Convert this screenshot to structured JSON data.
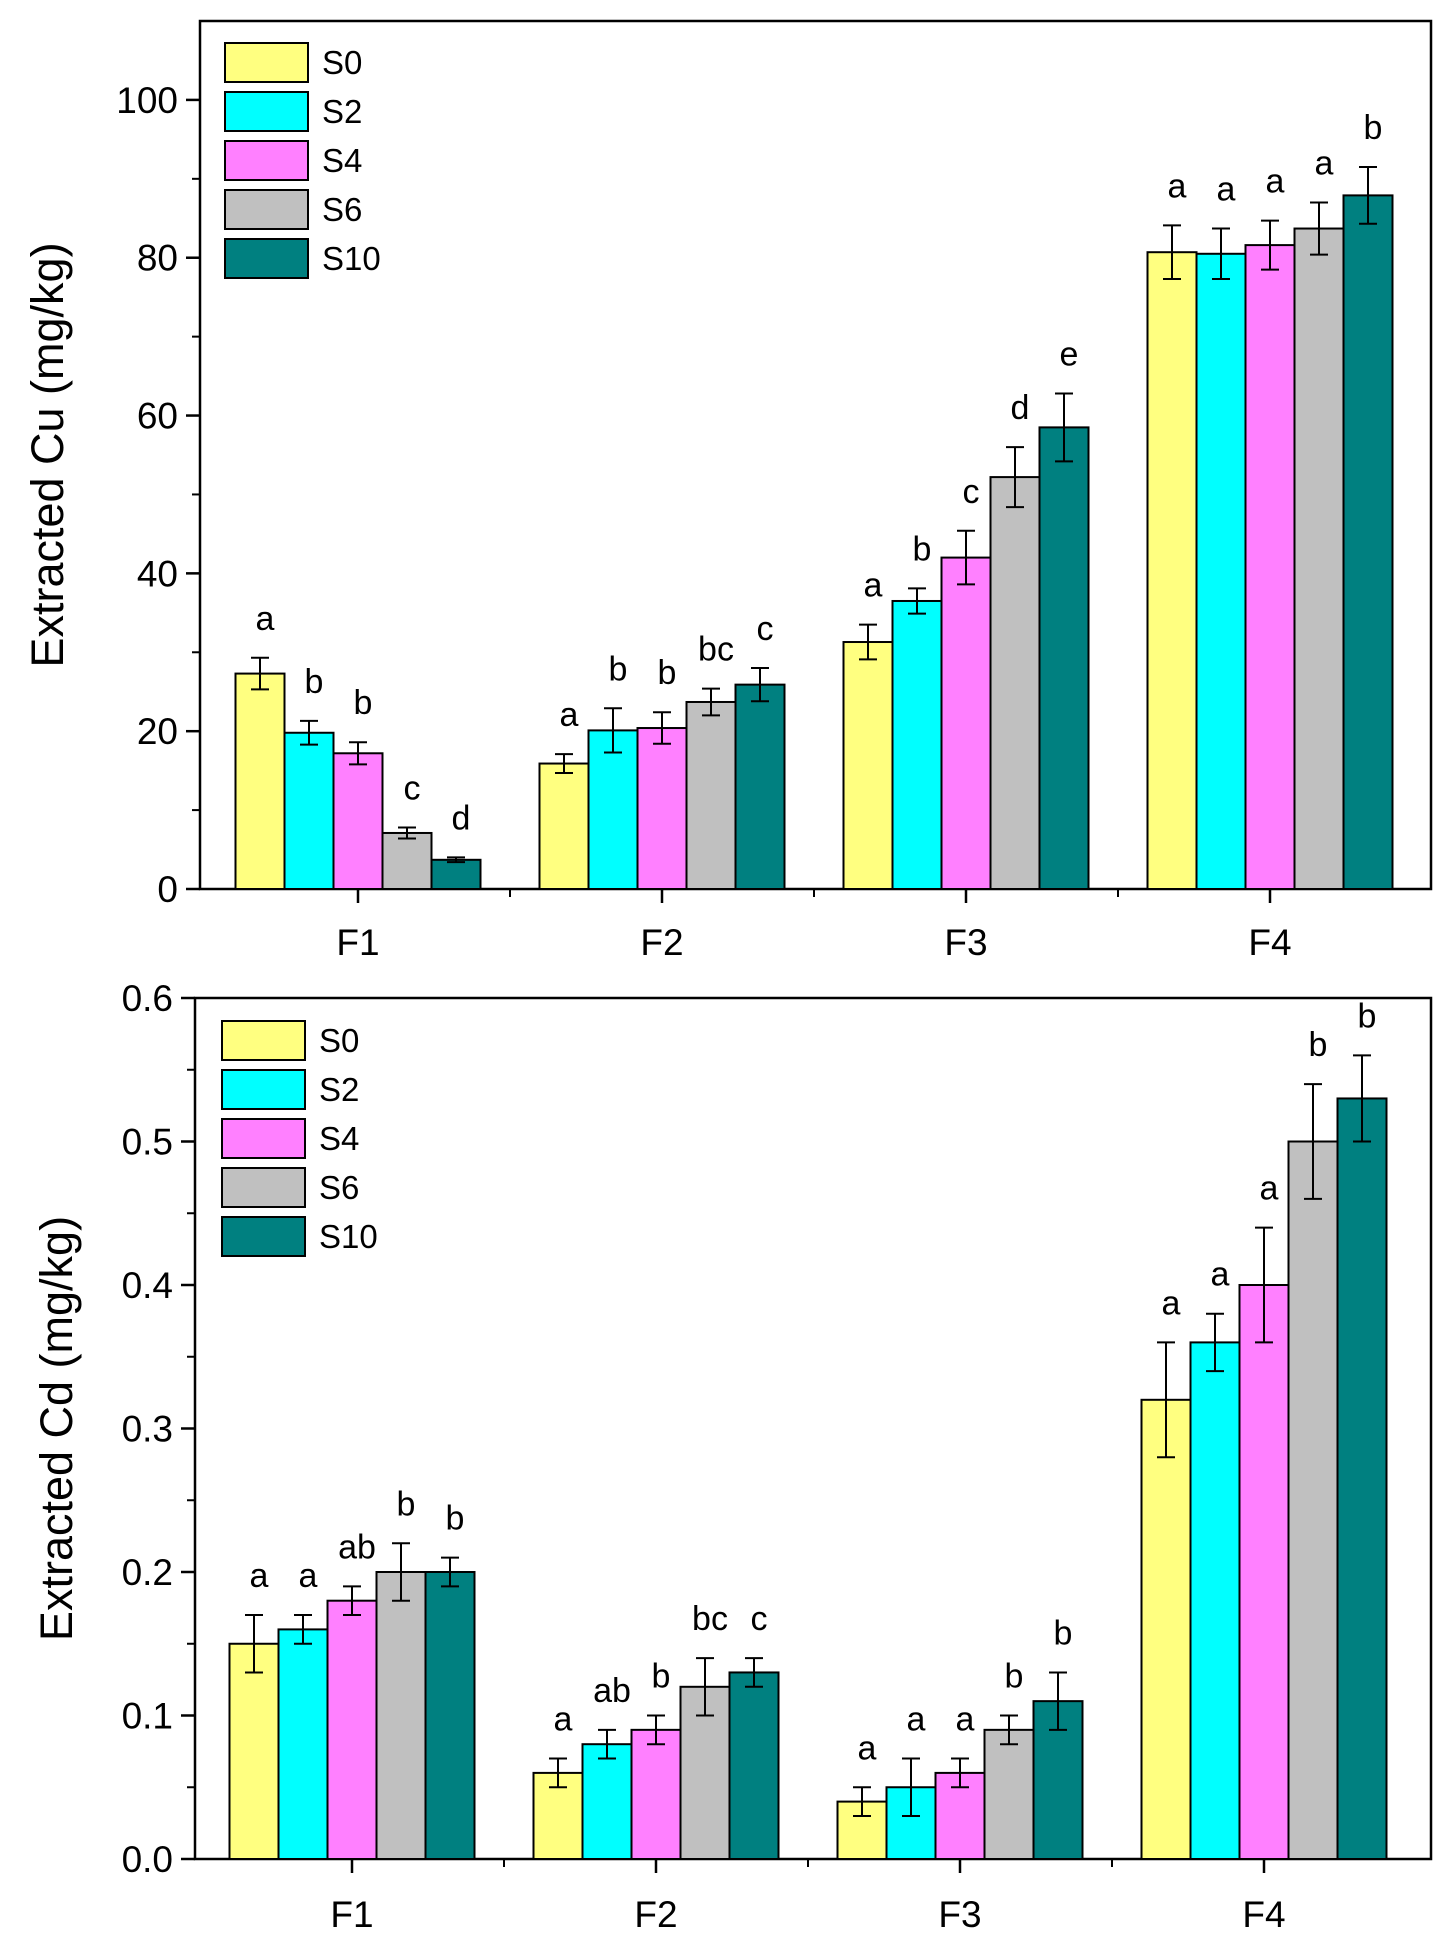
{
  "colors": {
    "S0": "#ffff80",
    "S2": "#00ffff",
    "S4": "#ff80ff",
    "S6": "#c0c0c0",
    "S10": "#008080"
  },
  "chart_data": [
    {
      "type": "bar",
      "title": "",
      "xlabel": "",
      "ylabel": "Extracted Cu (mg/kg)",
      "ylim": [
        0,
        110
      ],
      "yticks": [
        0,
        20,
        40,
        60,
        80,
        100
      ],
      "ytick_labels": [
        "0",
        "20",
        "40",
        "60",
        "80",
        "100"
      ],
      "categories": [
        "F1",
        "F2",
        "F3",
        "F4"
      ],
      "legend": {
        "position": "top-left",
        "entries": [
          "S0",
          "S2",
          "S4",
          "S6",
          "S10"
        ]
      },
      "series": [
        {
          "name": "S0",
          "values": [
            27.3,
            15.9,
            31.3,
            80.7
          ],
          "errors": [
            2.0,
            1.2,
            2.2,
            3.4
          ],
          "letters": [
            "a",
            "a",
            "a",
            "a"
          ]
        },
        {
          "name": "S2",
          "values": [
            19.8,
            20.1,
            36.5,
            80.5
          ],
          "errors": [
            1.5,
            2.8,
            1.6,
            3.2
          ],
          "letters": [
            "b",
            "b",
            "b",
            "a"
          ]
        },
        {
          "name": "S4",
          "values": [
            17.2,
            20.4,
            42.0,
            81.6
          ],
          "errors": [
            1.4,
            2.0,
            3.4,
            3.1
          ],
          "letters": [
            "b",
            "b",
            "c",
            "a"
          ]
        },
        {
          "name": "S6",
          "values": [
            7.1,
            23.7,
            52.2,
            83.7
          ],
          "errors": [
            0.7,
            1.7,
            3.8,
            3.3
          ],
          "letters": [
            "c",
            "bc",
            "d",
            "a"
          ]
        },
        {
          "name": "S10",
          "values": [
            3.7,
            25.9,
            58.5,
            87.9
          ],
          "errors": [
            0.3,
            2.1,
            4.3,
            3.6
          ],
          "letters": [
            "d",
            "c",
            "e",
            "b"
          ]
        }
      ]
    },
    {
      "type": "bar",
      "title": "",
      "xlabel": "",
      "ylabel": "Extracted Cd  (mg/kg)",
      "ylim": [
        0,
        0.6
      ],
      "yticks": [
        0,
        0.1,
        0.2,
        0.3,
        0.4,
        0.5,
        0.6
      ],
      "ytick_labels": [
        "0.0",
        "0.1",
        "0.2",
        "0.3",
        "0.4",
        "0.5",
        "0.6"
      ],
      "categories": [
        "F1",
        "F2",
        "F3",
        "F4"
      ],
      "legend": {
        "position": "top-left",
        "entries": [
          "S0",
          "S2",
          "S4",
          "S6",
          "S10"
        ]
      },
      "series": [
        {
          "name": "S0",
          "values": [
            0.15,
            0.06,
            0.04,
            0.32
          ],
          "errors": [
            0.02,
            0.01,
            0.01,
            0.04
          ],
          "letters": [
            "a",
            "a",
            "a",
            "a"
          ]
        },
        {
          "name": "S2",
          "values": [
            0.16,
            0.08,
            0.05,
            0.36
          ],
          "errors": [
            0.01,
            0.01,
            0.02,
            0.02
          ],
          "letters": [
            "a",
            "ab",
            "a",
            "a"
          ]
        },
        {
          "name": "S4",
          "values": [
            0.18,
            0.09,
            0.06,
            0.4
          ],
          "errors": [
            0.01,
            0.01,
            0.01,
            0.04
          ],
          "letters": [
            "ab",
            "b",
            "a",
            "a"
          ]
        },
        {
          "name": "S6",
          "values": [
            0.2,
            0.12,
            0.09,
            0.5
          ],
          "errors": [
            0.02,
            0.02,
            0.01,
            0.04
          ],
          "letters": [
            "b",
            "bc",
            "b",
            "b"
          ]
        },
        {
          "name": "S10",
          "values": [
            0.2,
            0.13,
            0.11,
            0.53
          ],
          "errors": [
            0.01,
            0.01,
            0.02,
            0.03
          ],
          "letters": [
            "b",
            "c",
            "b",
            "b"
          ]
        }
      ]
    }
  ]
}
